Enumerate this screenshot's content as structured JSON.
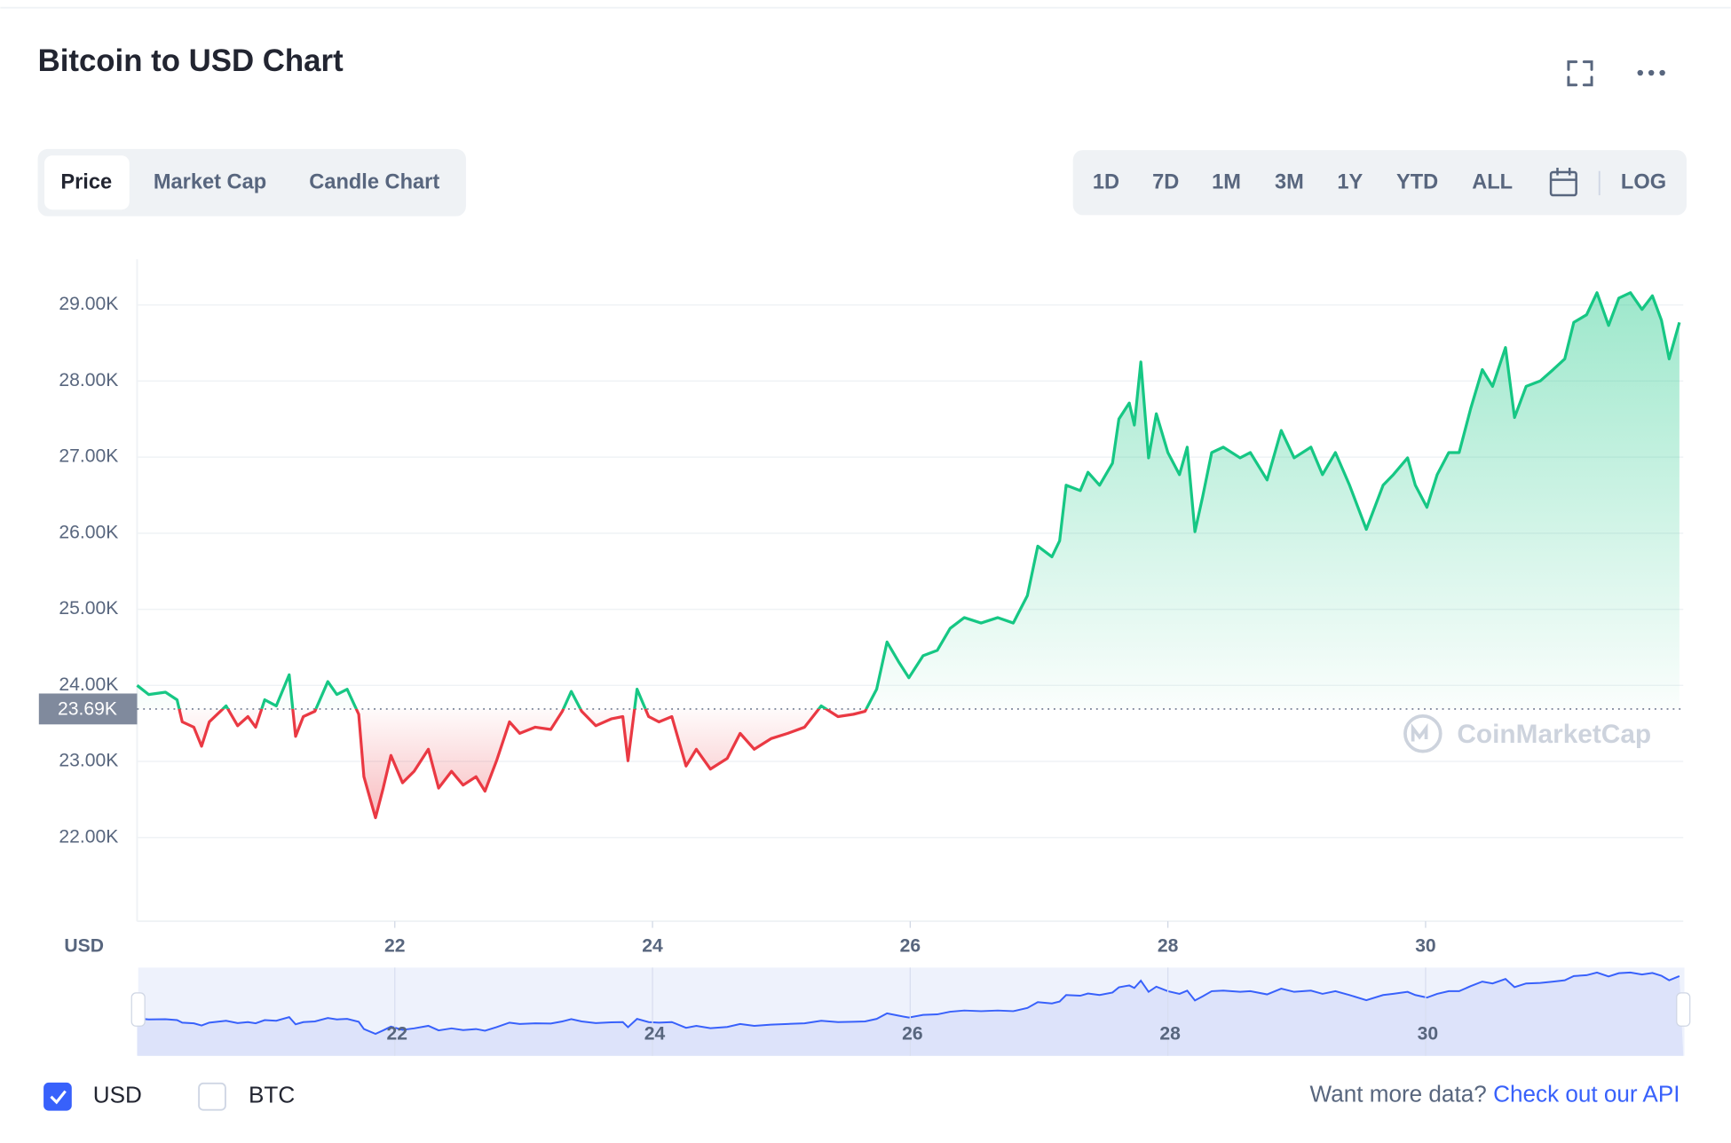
{
  "header": {
    "title": "Bitcoin to USD Chart"
  },
  "tabs": [
    "Price",
    "Market Cap",
    "Candle Chart"
  ],
  "ranges": [
    "1D",
    "7D",
    "1M",
    "3M",
    "1Y",
    "YTD",
    "ALL"
  ],
  "scale_button": "LOG",
  "chart_data": {
    "type": "line",
    "axis_label": "USD",
    "watermark": "CoinMarketCap",
    "up_color": "#16c784",
    "down_color": "#ea3943",
    "reference": {
      "value": 23690,
      "label": "23.69K"
    },
    "x": [
      20.0,
      20.09,
      20.22,
      20.31,
      20.35,
      20.44,
      20.5,
      20.56,
      20.69,
      20.78,
      20.86,
      20.92,
      20.99,
      21.08,
      21.18,
      21.23,
      21.29,
      21.38,
      21.48,
      21.55,
      21.63,
      21.72,
      21.76,
      21.85,
      21.91,
      21.97,
      22.06,
      22.15,
      22.26,
      22.34,
      22.44,
      22.53,
      22.63,
      22.7,
      22.79,
      22.89,
      22.97,
      23.09,
      23.21,
      23.3,
      23.37,
      23.45,
      23.56,
      23.68,
      23.77,
      23.81,
      23.88,
      23.97,
      24.05,
      24.15,
      24.26,
      24.34,
      24.45,
      24.58,
      24.68,
      24.79,
      24.92,
      25.05,
      25.18,
      25.31,
      25.44,
      25.56,
      25.65,
      25.74,
      25.82,
      25.91,
      25.99,
      26.1,
      26.21,
      26.31,
      26.42,
      26.55,
      26.68,
      26.8,
      26.91,
      26.99,
      27.1,
      27.16,
      27.21,
      27.32,
      27.38,
      27.47,
      27.57,
      27.62,
      27.7,
      27.74,
      27.79,
      27.85,
      27.91,
      28.0,
      28.09,
      28.15,
      28.21,
      28.27,
      28.34,
      28.43,
      28.56,
      28.64,
      28.77,
      28.88,
      28.98,
      29.11,
      29.2,
      29.3,
      29.41,
      29.54,
      29.67,
      29.75,
      29.86,
      29.92,
      30.01,
      30.09,
      30.18,
      30.26,
      30.35,
      30.44,
      30.52,
      30.62,
      30.69,
      30.78,
      30.89,
      30.99,
      31.08,
      31.15,
      31.25,
      31.33,
      31.42,
      31.5,
      31.59,
      31.68,
      31.76,
      31.83,
      31.89,
      31.97
    ],
    "values": [
      24000,
      23880,
      23910,
      23810,
      23520,
      23450,
      23200,
      23520,
      23730,
      23470,
      23590,
      23450,
      23810,
      23730,
      24140,
      23330,
      23590,
      23660,
      24050,
      23880,
      23950,
      23620,
      22800,
      22260,
      22650,
      23080,
      22720,
      22870,
      23160,
      22650,
      22870,
      22690,
      22800,
      22610,
      23010,
      23520,
      23370,
      23450,
      23420,
      23660,
      23920,
      23660,
      23470,
      23560,
      23590,
      23010,
      23950,
      23590,
      23520,
      23590,
      22940,
      23160,
      22900,
      23040,
      23370,
      23160,
      23300,
      23370,
      23450,
      23730,
      23590,
      23620,
      23660,
      23950,
      24570,
      24310,
      24100,
      24390,
      24460,
      24750,
      24890,
      24820,
      24890,
      24820,
      25180,
      25830,
      25690,
      25900,
      26630,
      26560,
      26800,
      26630,
      26920,
      27500,
      27710,
      27420,
      28250,
      26990,
      27570,
      27060,
      26770,
      27130,
      26020,
      26480,
      27060,
      27130,
      26990,
      27060,
      26700,
      27350,
      26990,
      27130,
      26770,
      27060,
      26630,
      26050,
      26630,
      26770,
      26990,
      26630,
      26340,
      26770,
      27060,
      27060,
      27640,
      28150,
      27930,
      28440,
      27520,
      27930,
      28000,
      28150,
      28290,
      28770,
      28870,
      29160,
      28730,
      29090,
      29160,
      28940,
      29120,
      28800,
      28290,
      28770
    ],
    "xlim": [
      20,
      32
    ],
    "xticks": [
      22,
      24,
      26,
      28,
      30
    ],
    "ylim": [
      20900,
      29600
    ],
    "yticks": [
      {
        "value": 22000,
        "label": "22.00K"
      },
      {
        "value": 23000,
        "label": "23.00K"
      },
      {
        "value": 24000,
        "label": "24.00K"
      },
      {
        "value": 25000,
        "label": "25.00K"
      },
      {
        "value": 26000,
        "label": "26.00K"
      },
      {
        "value": 27000,
        "label": "27.00K"
      },
      {
        "value": 28000,
        "label": "28.00K"
      },
      {
        "value": 29000,
        "label": "29.00K"
      }
    ],
    "grid": true
  },
  "footer": {
    "currencies": [
      {
        "label": "USD",
        "checked": true
      },
      {
        "label": "BTC",
        "checked": false
      }
    ],
    "prompt": "Want more data?",
    "link": "Check out our API"
  }
}
